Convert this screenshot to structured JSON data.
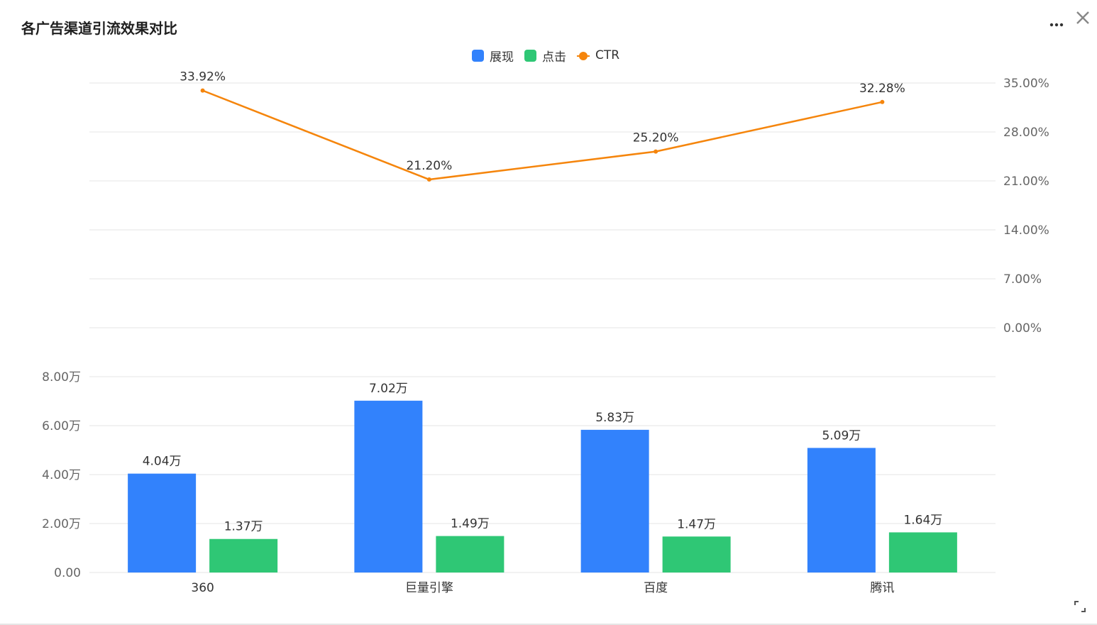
{
  "header": {
    "title": "各广告渠道引流效果对比",
    "more_icon": "ellipsis-icon",
    "close_icon": "close-icon",
    "expand_icon": "expand-icon"
  },
  "colors": {
    "impressions": "#3282fc",
    "clicks": "#2fc775",
    "ctr": "#f5850c",
    "grid": "#e6e6e6",
    "axis_text": "#666666",
    "label_text": "#333333"
  },
  "chart_data": [
    {
      "type": "line",
      "categories": [
        "360",
        "巨量引擎",
        "百度",
        "腾讯"
      ],
      "series": [
        {
          "name": "CTR",
          "values": [
            33.92,
            21.2,
            25.2,
            32.28
          ],
          "labels": [
            "33.92%",
            "21.20%",
            "25.20%",
            "32.28%"
          ]
        }
      ],
      "y_axis_position": "right",
      "ylim": [
        0,
        35
      ],
      "yticks": [
        0,
        7,
        14,
        21,
        28,
        35
      ],
      "ytick_labels": [
        "0.00%",
        "7.00%",
        "14.00%",
        "21.00%",
        "28.00%",
        "35.00%"
      ],
      "grid": true
    },
    {
      "type": "bar",
      "categories": [
        "360",
        "巨量引擎",
        "百度",
        "腾讯"
      ],
      "series": [
        {
          "name": "展现",
          "values": [
            4.04,
            7.02,
            5.83,
            5.09
          ],
          "labels": [
            "4.04万",
            "7.02万",
            "5.83万",
            "5.09万"
          ]
        },
        {
          "name": "点击",
          "values": [
            1.37,
            1.49,
            1.47,
            1.64
          ],
          "labels": [
            "1.37万",
            "1.49万",
            "1.47万",
            "1.64万"
          ]
        }
      ],
      "y_axis_position": "left",
      "ylim": [
        0,
        8
      ],
      "yticks": [
        0,
        2,
        4,
        6,
        8
      ],
      "ytick_labels": [
        "0.00",
        "2.00万",
        "4.00万",
        "6.00万",
        "8.00万"
      ],
      "grid": true
    }
  ],
  "legend": {
    "position": "top-center",
    "items": [
      "展现",
      "点击",
      "CTR"
    ]
  }
}
